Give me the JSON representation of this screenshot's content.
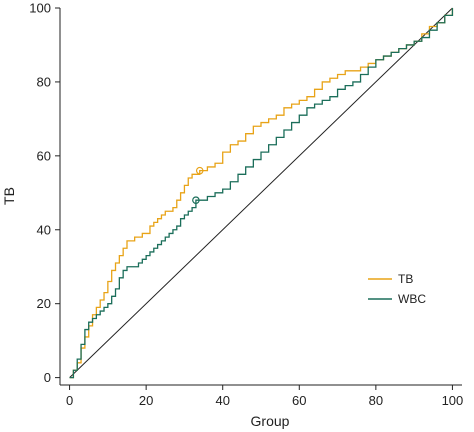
{
  "chart_data": {
    "type": "line",
    "title": "",
    "xlabel": "Group",
    "ylabel": "TB",
    "xlim": [
      -2.5,
      102.5
    ],
    "ylim": [
      -2,
      100
    ],
    "x_ticks": [
      "0",
      "20",
      "40",
      "60",
      "80",
      "100"
    ],
    "y_ticks": [
      "0",
      "20",
      "40",
      "60",
      "80",
      "100"
    ],
    "grid": false,
    "legend_position": "lower-right",
    "colors": {
      "TB": "#e8a317",
      "WBC": "#1b6e5a",
      "reference": "#222222",
      "axis": "#222222"
    },
    "reference_line": {
      "from": [
        0,
        0
      ],
      "to": [
        100,
        100
      ]
    },
    "series": [
      {
        "name": "TB",
        "marker_point": [
          34,
          56
        ],
        "x": [
          0,
          1,
          2,
          3,
          4,
          5,
          6,
          7,
          8,
          9,
          10,
          11,
          12,
          13,
          14,
          15,
          16,
          17,
          18,
          19,
          20,
          21,
          22,
          23,
          24,
          25,
          26,
          27,
          28,
          29,
          30,
          31,
          32,
          33,
          34,
          36,
          38,
          40,
          42,
          44,
          46,
          48,
          50,
          52,
          54,
          56,
          58,
          60,
          62,
          64,
          66,
          68,
          70,
          72,
          74,
          76,
          78,
          80,
          82,
          84,
          86,
          88,
          90,
          92,
          94,
          96,
          98,
          100
        ],
        "y": [
          0,
          2,
          4,
          8,
          11,
          14,
          17,
          19,
          21,
          23,
          26,
          29,
          31,
          33,
          35,
          37,
          37,
          38,
          38,
          39,
          39,
          41,
          42,
          43,
          44,
          45,
          45,
          46,
          48,
          50,
          52,
          54,
          55,
          55,
          56,
          57,
          58,
          61,
          63,
          64,
          66,
          68,
          69,
          70,
          71,
          73,
          74,
          75,
          76,
          78,
          80,
          81,
          82,
          83,
          83,
          84,
          85,
          86,
          87,
          88,
          89,
          90,
          91,
          93,
          95,
          96,
          98,
          100
        ]
      },
      {
        "name": "WBC",
        "marker_point": [
          33,
          48
        ],
        "x": [
          0,
          1,
          2,
          3,
          4,
          5,
          6,
          7,
          8,
          9,
          10,
          11,
          12,
          13,
          14,
          15,
          16,
          17,
          18,
          19,
          20,
          21,
          22,
          23,
          24,
          25,
          26,
          27,
          28,
          29,
          30,
          31,
          32,
          33,
          34,
          36,
          38,
          40,
          42,
          44,
          46,
          48,
          50,
          52,
          54,
          56,
          58,
          60,
          62,
          64,
          66,
          68,
          70,
          72,
          74,
          76,
          78,
          80,
          82,
          84,
          86,
          88,
          90,
          92,
          94,
          96,
          98,
          100
        ],
        "y": [
          0,
          2,
          5,
          9,
          13,
          15,
          16,
          17,
          18,
          19,
          20,
          22,
          24,
          27,
          29,
          30,
          30,
          30,
          31,
          32,
          33,
          34,
          35,
          36,
          37,
          38,
          39,
          40,
          41,
          43,
          44,
          45,
          46,
          48,
          48,
          49,
          50,
          51,
          53,
          55,
          57,
          59,
          61,
          63,
          65,
          67,
          69,
          71,
          73,
          74,
          75,
          76,
          78,
          79,
          80,
          82,
          84,
          86,
          87,
          88,
          89,
          90,
          91,
          92,
          94,
          96,
          98,
          100
        ]
      }
    ]
  }
}
